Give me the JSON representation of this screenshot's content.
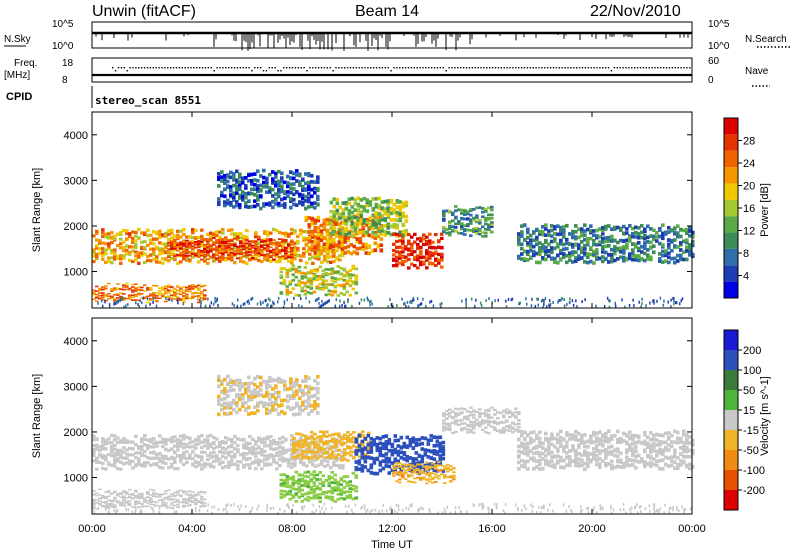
{
  "header": {
    "station": "Unwin (fitACF)",
    "beam": "Beam 14",
    "date": "22/Nov/2010"
  },
  "summary_panel": {
    "nsky_label": "N.Sky",
    "nsearch_label": "N.Search",
    "left_ticks": [
      "10^5",
      "10^0"
    ],
    "right_ticks": [
      "10^5",
      "10^0"
    ],
    "freq_label_line1": "Freq.",
    "freq_label_line2": "[MHz]",
    "freq_ticks": [
      "18",
      "8"
    ],
    "nave_label": "Nave",
    "nave_ticks": [
      "60",
      "0"
    ],
    "cpid_label": "CPID",
    "cpid_value": "stereo_scan 8551"
  },
  "colors": {
    "power_scale": [
      "#0000e6",
      "#1e3cb4",
      "#2f6ea8",
      "#3c8c5a",
      "#5aaa46",
      "#a6c832",
      "#f0c800",
      "#f59600",
      "#f06400",
      "#e63200",
      "#dc0000"
    ],
    "velocity_scale": [
      "#1a1ad2",
      "#2b4fbd",
      "#3a7a3a",
      "#4fb43a",
      "#8ccd46",
      "#c8c8c8",
      "#c8c8c8",
      "#f0b428",
      "#f08c14",
      "#f06400",
      "#e63200",
      "#dc0000"
    ],
    "velocity_colorbar": [
      "#1a1ad2",
      "#2b4fbd",
      "#3a7a3a",
      "#4fb43a",
      "#c8c8c8",
      "#f0b428",
      "#f08c14",
      "#e65000",
      "#dc0000"
    ]
  },
  "chart_data": [
    {
      "type": "heatmap",
      "panel": "power",
      "ylabel": "Slant Range [km]",
      "y_ticks": [
        "1000",
        "2000",
        "3000",
        "4000"
      ],
      "ylim": [
        200,
        4500
      ],
      "xlim": [
        "00:00",
        "24:00"
      ],
      "colorbar_label": "Power [dB]",
      "colorbar_ticks": [
        "4",
        "8",
        "12",
        "16",
        "20",
        "24",
        "28"
      ],
      "colorbar_range": [
        0,
        30
      ],
      "echo_bands": [
        {
          "t0": 0.0,
          "t1": 4.5,
          "r0": 350,
          "r1": 700,
          "value": 22
        },
        {
          "t0": 0.0,
          "t1": 10.0,
          "r0": 1200,
          "r1": 1900,
          "value": 20
        },
        {
          "t0": 3.0,
          "t1": 8.0,
          "r0": 1300,
          "r1": 1700,
          "value": 26
        },
        {
          "t0": 7.5,
          "t1": 10.5,
          "r0": 500,
          "r1": 1100,
          "value": 16
        },
        {
          "t0": 8.5,
          "t1": 11.5,
          "r0": 1400,
          "r1": 2200,
          "value": 22
        },
        {
          "t0": 9.5,
          "t1": 12.5,
          "r0": 1800,
          "r1": 2600,
          "value": 14
        },
        {
          "t0": 12.0,
          "t1": 14.0,
          "r0": 1100,
          "r1": 1800,
          "value": 27
        },
        {
          "t0": 14.0,
          "t1": 16.0,
          "r0": 1800,
          "r1": 2400,
          "value": 10
        },
        {
          "t0": 17.0,
          "t1": 24.0,
          "r0": 1200,
          "r1": 2000,
          "value": 8
        },
        {
          "t0": 5.0,
          "t1": 9.0,
          "r0": 2400,
          "r1": 3200,
          "value": 6
        }
      ]
    },
    {
      "type": "heatmap",
      "panel": "velocity",
      "ylabel": "Slant Range [km]",
      "y_ticks": [
        "1000",
        "2000",
        "3000",
        "4000"
      ],
      "ylim": [
        200,
        4500
      ],
      "xlabel": "Time UT",
      "x_ticks": [
        "00:00",
        "04:00",
        "08:00",
        "12:00",
        "16:00",
        "20:00",
        "00:00"
      ],
      "xlim": [
        "00:00",
        "24:00"
      ],
      "colorbar_label": "Velocity [m s^-1]",
      "colorbar_ticks": [
        "200",
        "100",
        "50",
        "15",
        "-15",
        "-50",
        "-100",
        "-200"
      ],
      "colorbar_range": [
        -250,
        250
      ],
      "echo_bands": [
        {
          "t0": 0.0,
          "t1": 10.0,
          "r0": 1200,
          "r1": 1900,
          "value": 0
        },
        {
          "t0": 0.0,
          "t1": 4.5,
          "r0": 350,
          "r1": 700,
          "value": 0
        },
        {
          "t0": 7.5,
          "t1": 10.5,
          "r0": 500,
          "r1": 1100,
          "value": 80
        },
        {
          "t0": 8.0,
          "t1": 11.0,
          "r0": 1400,
          "r1": 2000,
          "value": -60
        },
        {
          "t0": 10.5,
          "t1": 14.0,
          "r0": 1100,
          "r1": 1900,
          "value": 200
        },
        {
          "t0": 12.0,
          "t1": 14.5,
          "r0": 900,
          "r1": 1300,
          "value": -80
        },
        {
          "t0": 14.0,
          "t1": 17.0,
          "r0": 2000,
          "r1": 2500,
          "value": 10
        },
        {
          "t0": 17.0,
          "t1": 24.0,
          "r0": 1200,
          "r1": 2000,
          "value": 0
        },
        {
          "t0": 5.0,
          "t1": 9.0,
          "r0": 2400,
          "r1": 3200,
          "value": -40
        }
      ]
    }
  ]
}
